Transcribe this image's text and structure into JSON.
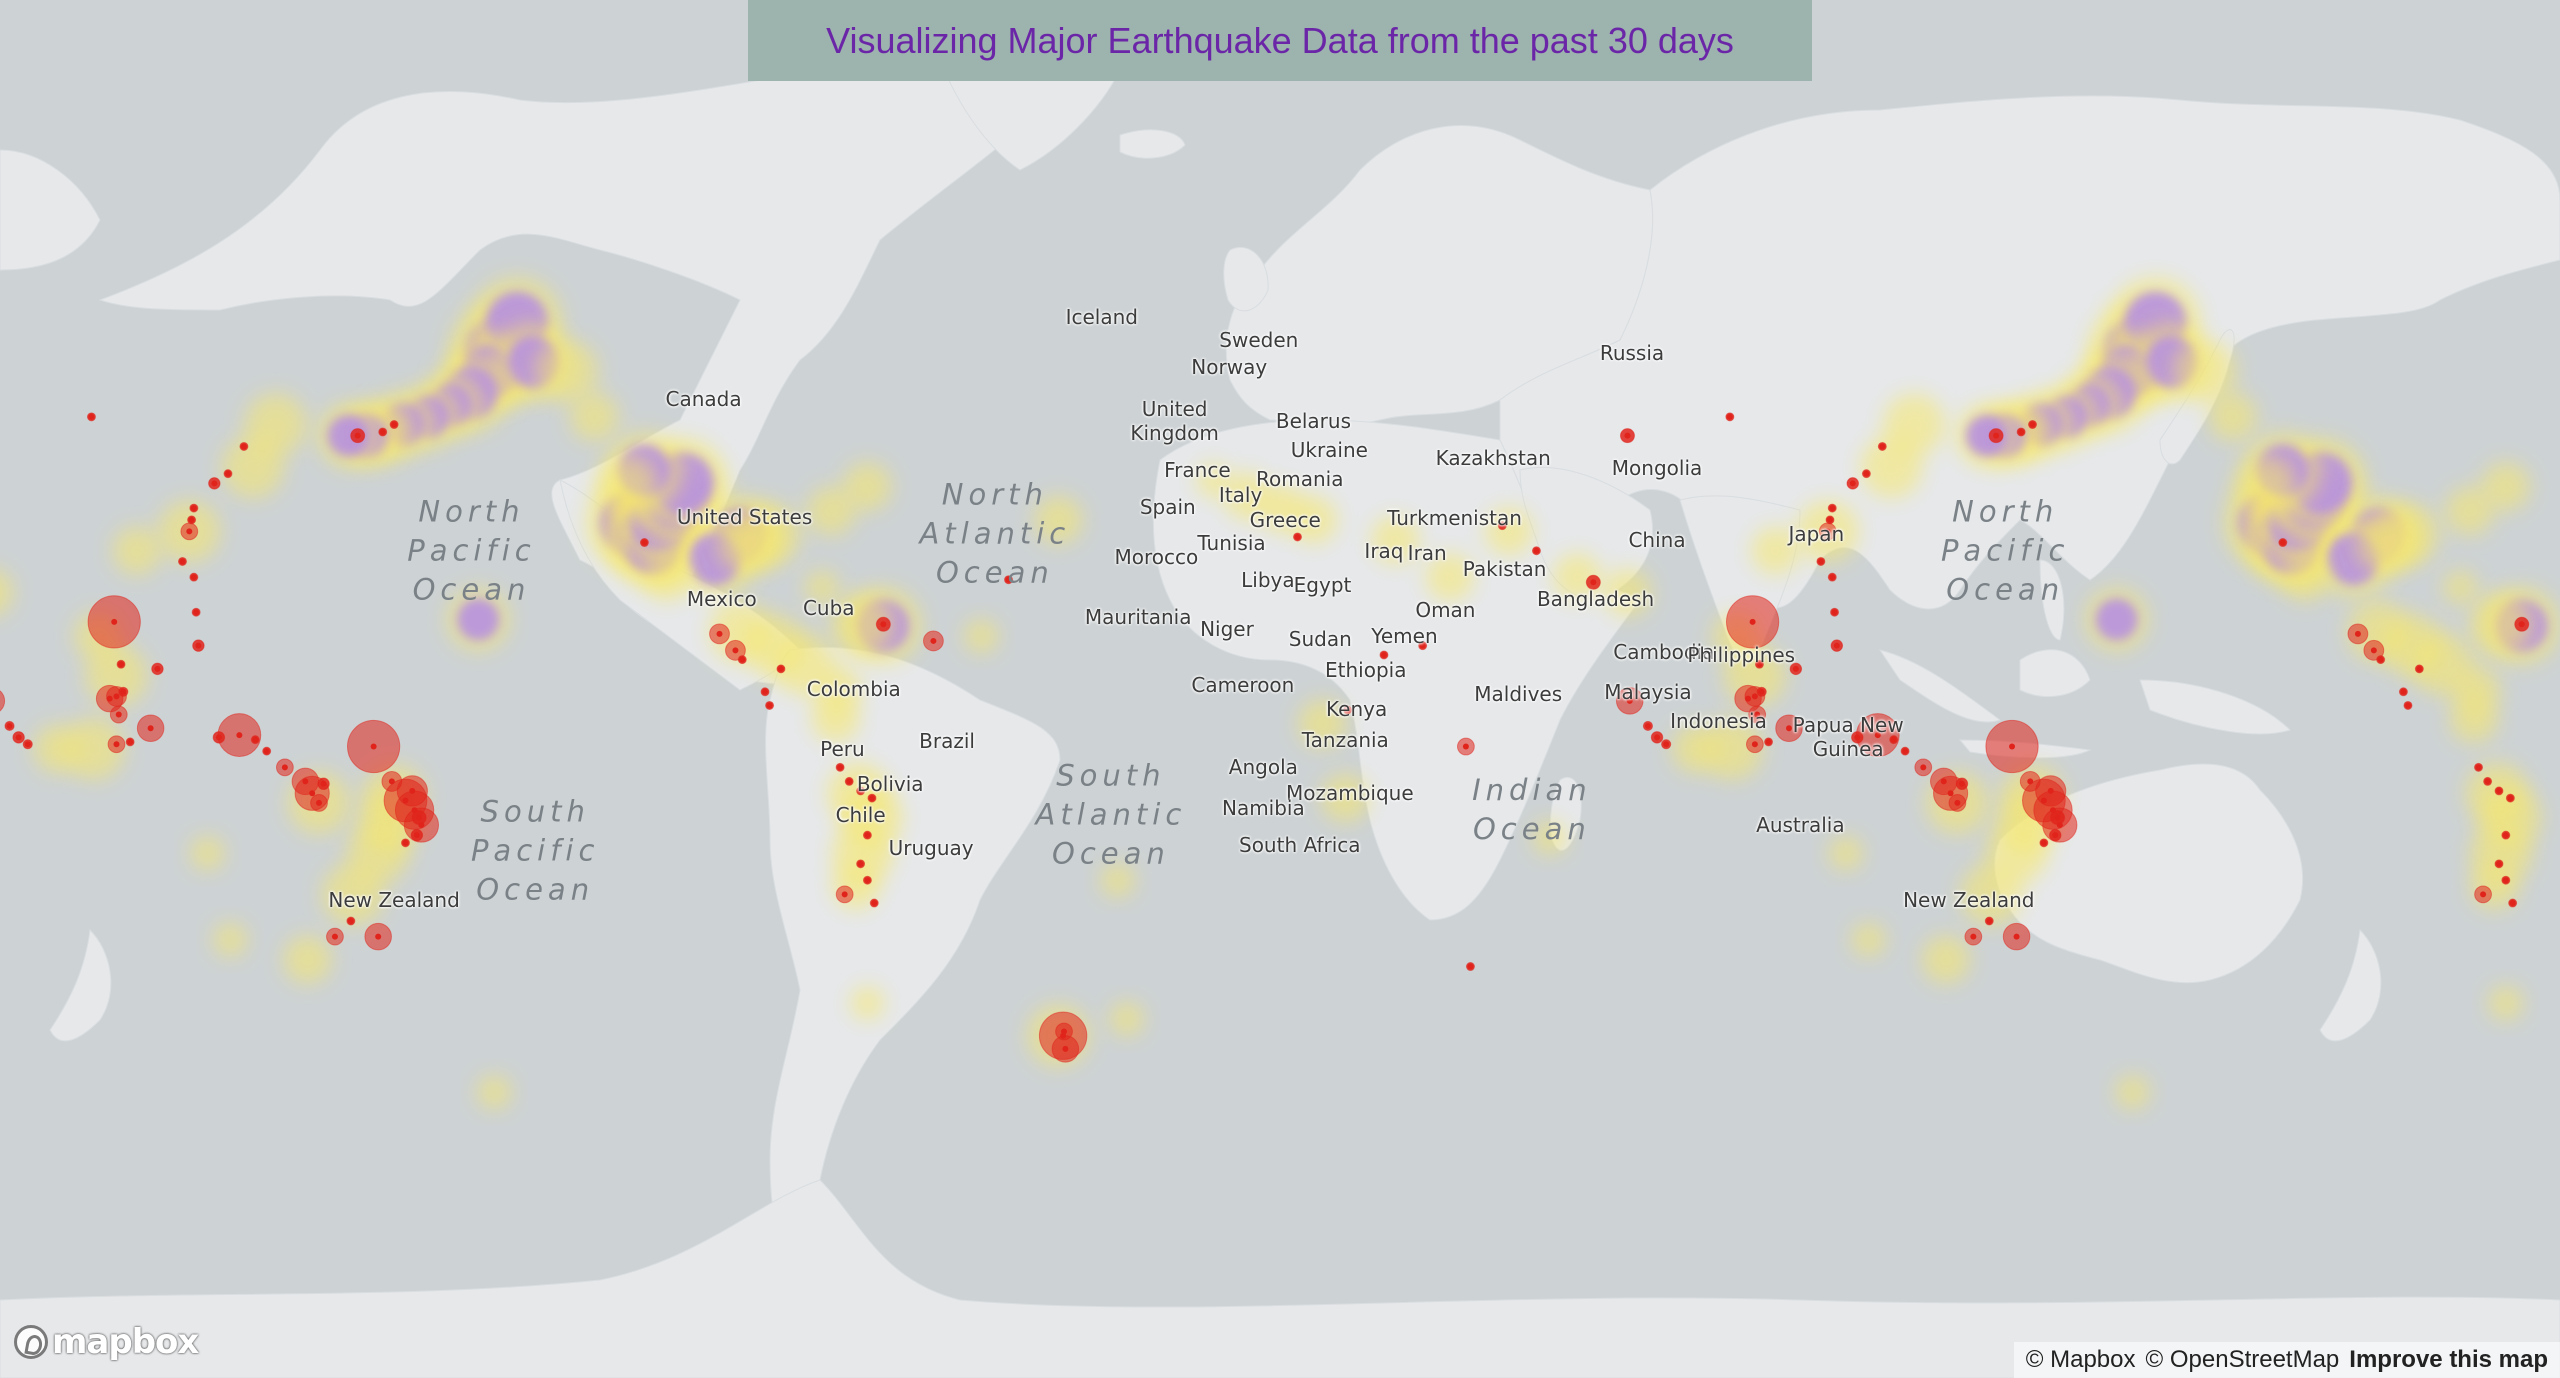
{
  "title": "Visualizing Major Earthquake Data from the past 30 days",
  "colors": {
    "water": "#cdd2d4",
    "land": "#e6e8ea",
    "quake": "#e0241c",
    "heat_low": "#f7e86a",
    "heat_high": "#b892e0",
    "title_bg": "#9db3ae",
    "title_text": "#6b26a8"
  },
  "country_labels": [
    {
      "name": "Iceland",
      "lon": -18.5,
      "lat": 65.0
    },
    {
      "name": "Sweden",
      "lon": 16.0,
      "lat": 62.8
    },
    {
      "name": "Norway",
      "lon": 9.5,
      "lat": 60.0
    },
    {
      "name": "Russia",
      "lon": 98.0,
      "lat": 61.5
    },
    {
      "name": "Canada",
      "lon": -106.0,
      "lat": 56.3
    },
    {
      "name": "United\nKingdom",
      "lon": -2.5,
      "lat": 53.5
    },
    {
      "name": "Belarus",
      "lon": 28.0,
      "lat": 53.4
    },
    {
      "name": "Ukraine",
      "lon": 31.5,
      "lat": 49.5
    },
    {
      "name": "Kazakhstan",
      "lon": 67.5,
      "lat": 48.3
    },
    {
      "name": "Mongolia",
      "lon": 103.5,
      "lat": 46.8
    },
    {
      "name": "France",
      "lon": 2.5,
      "lat": 46.6
    },
    {
      "name": "Romania",
      "lon": 25.0,
      "lat": 45.2
    },
    {
      "name": "Italy",
      "lon": 12.0,
      "lat": 42.7
    },
    {
      "name": "Spain",
      "lon": -4.0,
      "lat": 40.7
    },
    {
      "name": "United States",
      "lon": -97.0,
      "lat": 39.0
    },
    {
      "name": "Turkmenistan",
      "lon": 59.0,
      "lat": 38.8
    },
    {
      "name": "Greece",
      "lon": 21.8,
      "lat": 38.5
    },
    {
      "name": "China",
      "lon": 103.5,
      "lat": 35.0
    },
    {
      "name": "Japan",
      "lon": 138.5,
      "lat": 36.0
    },
    {
      "name": "Iraq",
      "lon": 43.5,
      "lat": 33.0
    },
    {
      "name": "Iran",
      "lon": 53.0,
      "lat": 32.6
    },
    {
      "name": "Tunisia",
      "lon": 10.0,
      "lat": 34.5
    },
    {
      "name": "Morocco",
      "lon": -6.5,
      "lat": 31.8
    },
    {
      "name": "Pakistan",
      "lon": 70.0,
      "lat": 29.5
    },
    {
      "name": "Libya",
      "lon": 18.0,
      "lat": 27.5
    },
    {
      "name": "Egypt",
      "lon": 30.0,
      "lat": 26.5
    },
    {
      "name": "Bangladesh",
      "lon": 90.0,
      "lat": 23.7
    },
    {
      "name": "Mexico",
      "lon": -102.0,
      "lat": 23.6
    },
    {
      "name": "Oman",
      "lon": 57.0,
      "lat": 21.5
    },
    {
      "name": "Cuba",
      "lon": -78.5,
      "lat": 21.8
    },
    {
      "name": "Mauritania",
      "lon": -10.5,
      "lat": 20.0
    },
    {
      "name": "Niger",
      "lon": 9.0,
      "lat": 17.5
    },
    {
      "name": "Sudan",
      "lon": 29.5,
      "lat": 15.5
    },
    {
      "name": "Yemen",
      "lon": 48.0,
      "lat": 16.0
    },
    {
      "name": "Cambodia",
      "lon": 105.0,
      "lat": 12.7
    },
    {
      "name": "Philippines",
      "lon": 122.0,
      "lat": 12.0
    },
    {
      "name": "Ethiopia",
      "lon": 39.5,
      "lat": 8.8
    },
    {
      "name": "Cameroon",
      "lon": 12.5,
      "lat": 5.5
    },
    {
      "name": "Colombia",
      "lon": -73.0,
      "lat": 4.5
    },
    {
      "name": "Malaysia",
      "lon": 101.5,
      "lat": 4.0
    },
    {
      "name": "Maldives",
      "lon": 73.0,
      "lat": 3.5
    },
    {
      "name": "Kenya",
      "lon": 37.5,
      "lat": 0.3
    },
    {
      "name": "Indonesia",
      "lon": 117.0,
      "lat": -2.5
    },
    {
      "name": "Papua New\nGuinea",
      "lon": 145.5,
      "lat": -6.0
    },
    {
      "name": "Brazil",
      "lon": -52.5,
      "lat": -6.8
    },
    {
      "name": "Tanzania",
      "lon": 35.0,
      "lat": -6.5
    },
    {
      "name": "Peru",
      "lon": -75.5,
      "lat": -8.5
    },
    {
      "name": "Angola",
      "lon": 17.0,
      "lat": -12.5
    },
    {
      "name": "Bolivia",
      "lon": -65.0,
      "lat": -16.0
    },
    {
      "name": "Mozambique",
      "lon": 36.0,
      "lat": -18.0
    },
    {
      "name": "Namibia",
      "lon": 17.0,
      "lat": -21.0
    },
    {
      "name": "Chile",
      "lon": -71.5,
      "lat": -22.5
    },
    {
      "name": "Australia",
      "lon": 135.0,
      "lat": -24.5
    },
    {
      "name": "South Africa",
      "lon": 25.0,
      "lat": -28.5
    },
    {
      "name": "Uruguay",
      "lon": -56.0,
      "lat": -29.0
    },
    {
      "name": "New Zealand",
      "lon": 172.0,
      "lat": -38.5
    },
    {
      "name": "New Zealand",
      "lon": -174.0,
      "lat": -38.5
    }
  ],
  "ocean_labels": [
    {
      "name": "North\nPacific\nOcean",
      "lon": -157.0,
      "lat": 33.0
    },
    {
      "name": "North\nPacific\nOcean",
      "lon": 180.0,
      "lat": 33.0
    },
    {
      "name": "North\nAtlantic\nOcean",
      "lon": -42.0,
      "lat": 36.0
    },
    {
      "name": "South\nPacific\nOcean",
      "lon": -143.0,
      "lat": -29.5
    },
    {
      "name": "South\nAtlantic\nOcean",
      "lon": -16.5,
      "lat": -22.5
    },
    {
      "name": "Indian\nOcean",
      "lon": 76.0,
      "lat": -21.5
    }
  ],
  "earthquakes": [
    {
      "lon": -178.5,
      "lat": -8.0,
      "mag": 6.4
    },
    {
      "lon": -174.5,
      "lat": -15.5,
      "mag": 5.6
    },
    {
      "lon": -171.5,
      "lat": -19.5,
      "mag": 6.2
    },
    {
      "lon": -170.0,
      "lat": -17.5,
      "mag": 5.9
    },
    {
      "lon": -169.5,
      "lat": -21.5,
      "mag": 6.1
    },
    {
      "lon": -168.5,
      "lat": -23.0,
      "mag": 5.4
    },
    {
      "lon": -168.0,
      "lat": -24.5,
      "mag": 6.0
    },
    {
      "lon": -169.0,
      "lat": -26.5,
      "mag": 5.3
    },
    {
      "lon": -171.5,
      "lat": -28.0,
      "mag": 5.0
    },
    {
      "lon": -177.5,
      "lat": -44.5,
      "mag": 5.8
    },
    {
      "lon": -182.0,
      "lat": 51.5,
      "mag": 5.4
    },
    {
      "lon": -176.5,
      "lat": 52.0,
      "mag": 5.0
    },
    {
      "lon": -174.0,
      "lat": 53.0,
      "mag": 4.9
    },
    {
      "lon": -119.0,
      "lat": 34.5,
      "mag": 4.8
    },
    {
      "lon": -102.5,
      "lat": 16.5,
      "mag": 5.6
    },
    {
      "lon": -99.0,
      "lat": 13.0,
      "mag": 5.6
    },
    {
      "lon": -97.5,
      "lat": 11.0,
      "mag": 5.0
    },
    {
      "lon": -92.5,
      "lat": 4.0,
      "mag": 4.9
    },
    {
      "lon": -89.0,
      "lat": 9.0,
      "mag": 4.8
    },
    {
      "lon": -91.5,
      "lat": 1.0,
      "mag": 4.9
    },
    {
      "lon": -66.5,
      "lat": 18.5,
      "mag": 5.4
    },
    {
      "lon": -55.5,
      "lat": 15.0,
      "mag": 5.6
    },
    {
      "lon": -39.0,
      "lat": 27.5,
      "mag": 4.9
    },
    {
      "lon": -76.0,
      "lat": -12.5,
      "mag": 4.9
    },
    {
      "lon": -74.0,
      "lat": -15.5,
      "mag": 5.0
    },
    {
      "lon": -71.5,
      "lat": -17.5,
      "mag": 5.0
    },
    {
      "lon": -69.0,
      "lat": -19.0,
      "mag": 5.0
    },
    {
      "lon": -70.0,
      "lat": -26.5,
      "mag": 5.0
    },
    {
      "lon": -71.5,
      "lat": -32.0,
      "mag": 4.8
    },
    {
      "lon": -70.0,
      "lat": -35.0,
      "mag": 4.9
    },
    {
      "lon": -68.5,
      "lat": -39.0,
      "mag": 4.8
    },
    {
      "lon": -75.0,
      "lat": -37.5,
      "mag": 5.5
    },
    {
      "lon": -27.0,
      "lat": -58.0,
      "mag": 6.3
    },
    {
      "lon": -26.5,
      "lat": -59.5,
      "mag": 5.8
    },
    {
      "lon": -26.8,
      "lat": -57.5,
      "mag": 5.5
    },
    {
      "lon": 24.5,
      "lat": 35.5,
      "mag": 4.8
    },
    {
      "lon": 35.5,
      "lat": 0.0,
      "mag": 4.8
    },
    {
      "lon": 43.5,
      "lat": 12.0,
      "mag": 4.8
    },
    {
      "lon": 52.0,
      "lat": 14.0,
      "mag": 4.8
    },
    {
      "lon": 69.5,
      "lat": 37.5,
      "mag": 4.8
    },
    {
      "lon": 77.0,
      "lat": 33.0,
      "mag": 4.8
    },
    {
      "lon": 89.5,
      "lat": 27.0,
      "mag": 5.4
    },
    {
      "lon": 97.0,
      "lat": 51.5,
      "mag": 5.4
    },
    {
      "lon": 119.5,
      "lat": 54.0,
      "mag": 4.8
    },
    {
      "lon": 97.5,
      "lat": 2.0,
      "mag": 5.8
    },
    {
      "lon": 101.5,
      "lat": -3.5,
      "mag": 5.2
    },
    {
      "lon": 103.5,
      "lat": -6.0,
      "mag": 5.3
    },
    {
      "lon": 105.5,
      "lat": -7.5,
      "mag": 5.2
    },
    {
      "lon": 61.5,
      "lat": -8.0,
      "mag": 5.5
    },
    {
      "lon": 62.5,
      "lat": -49.0,
      "mag": 4.8
    },
    {
      "lon": 124.5,
      "lat": 19.0,
      "mag": 6.4
    },
    {
      "lon": 126.0,
      "lat": 10.0,
      "mag": 4.8
    },
    {
      "lon": 123.5,
      "lat": 2.5,
      "mag": 5.8
    },
    {
      "lon": 125.0,
      "lat": 3.0,
      "mag": 5.6
    },
    {
      "lon": 126.5,
      "lat": 4.0,
      "mag": 5.2
    },
    {
      "lon": 125.5,
      "lat": -1.0,
      "mag": 5.5
    },
    {
      "lon": 125.0,
      "lat": -7.5,
      "mag": 5.5
    },
    {
      "lon": 128.0,
      "lat": -7.0,
      "mag": 5.0
    },
    {
      "lon": 132.5,
      "lat": -4.0,
      "mag": 5.8
    },
    {
      "lon": 134.0,
      "lat": 9.0,
      "mag": 5.3
    },
    {
      "lon": 143.0,
      "lat": 14.0,
      "mag": 5.3
    },
    {
      "lon": 142.0,
      "lat": 28.0,
      "mag": 5.0
    },
    {
      "lon": 139.5,
      "lat": 31.0,
      "mag": 5.0
    },
    {
      "lon": 141.5,
      "lat": 38.5,
      "mag": 4.9
    },
    {
      "lon": 142.0,
      "lat": 40.5,
      "mag": 4.9
    },
    {
      "lon": 141.0,
      "lat": 36.5,
      "mag": 5.5
    },
    {
      "lon": 142.5,
      "lat": 21.0,
      "mag": 4.8
    },
    {
      "lon": 146.5,
      "lat": 44.5,
      "mag": 5.3
    },
    {
      "lon": 149.5,
      "lat": 46.0,
      "mag": 4.8
    },
    {
      "lon": 153.0,
      "lat": 50.0,
      "mag": 4.8
    },
    {
      "lon": 147.5,
      "lat": -6.0,
      "mag": 5.3
    },
    {
      "lon": 152.0,
      "lat": -5.5,
      "mag": 6.2
    },
    {
      "lon": 155.5,
      "lat": -6.5,
      "mag": 5.0
    },
    {
      "lon": 158.0,
      "lat": -9.0,
      "mag": 4.9
    },
    {
      "lon": 162.0,
      "lat": -12.5,
      "mag": 5.5
    },
    {
      "lon": 166.5,
      "lat": -15.5,
      "mag": 5.8
    },
    {
      "lon": 168.0,
      "lat": -18.0,
      "mag": 6.0
    },
    {
      "lon": 169.5,
      "lat": -20.0,
      "mag": 5.5
    },
    {
      "lon": 170.5,
      "lat": -16.0,
      "mag": 5.3
    },
    {
      "lon": 173.0,
      "lat": -44.5,
      "mag": 5.5
    },
    {
      "lon": 176.5,
      "lat": -42.0,
      "mag": 4.8
    }
  ],
  "heat_clusters": [
    {
      "lon": -150.5,
      "lat": 61.5,
      "w": 6,
      "dense": true
    },
    {
      "lon": -147.0,
      "lat": 64.5,
      "w": 5,
      "dense": true
    },
    {
      "lon": -153.0,
      "lat": 59.5,
      "w": 4,
      "dense": true
    },
    {
      "lon": -143.5,
      "lat": 60.5,
      "w": 4,
      "dense": true
    },
    {
      "lon": -157.0,
      "lat": 57.0,
      "w": 4,
      "dense": true
    },
    {
      "lon": -161.5,
      "lat": 55.5,
      "w": 3,
      "dense": true
    },
    {
      "lon": -166.5,
      "lat": 54.0,
      "w": 3,
      "dense": true
    },
    {
      "lon": -172.0,
      "lat": 53.0,
      "w": 3,
      "dense": true
    },
    {
      "lon": -176.5,
      "lat": 52.0,
      "w": 3,
      "dense": false
    },
    {
      "lon": 180.0,
      "lat": 51.5,
      "w": 3,
      "dense": true
    },
    {
      "lon": 176.0,
      "lat": 51.5,
      "w": 3,
      "dense": true
    },
    {
      "lon": -122.0,
      "lat": 38.0,
      "w": 5,
      "dense": true
    },
    {
      "lon": -118.0,
      "lat": 35.5,
      "w": 5,
      "dense": true
    },
    {
      "lon": -117.0,
      "lat": 33.5,
      "w": 4,
      "dense": true
    },
    {
      "lon": -115.5,
      "lat": 38.5,
      "w": 5,
      "dense": true
    },
    {
      "lon": -112.0,
      "lat": 42.0,
      "w": 5,
      "dense": true
    },
    {
      "lon": -110.5,
      "lat": 44.5,
      "w": 5,
      "dense": true
    },
    {
      "lon": -119.0,
      "lat": 46.5,
      "w": 4,
      "dense": true
    },
    {
      "lon": -123.0,
      "lat": 44.0,
      "w": 3,
      "dense": false
    },
    {
      "lon": -98.0,
      "lat": 36.0,
      "w": 4,
      "dense": true
    },
    {
      "lon": -103.5,
      "lat": 31.5,
      "w": 4,
      "dense": true
    },
    {
      "lon": -96.0,
      "lat": 34.5,
      "w": 3,
      "dense": false
    },
    {
      "lon": -91.5,
      "lat": 36.0,
      "w": 3,
      "dense": false
    },
    {
      "lon": -155.5,
      "lat": 19.5,
      "w": 3,
      "dense": true
    },
    {
      "lon": -66.5,
      "lat": 18.2,
      "w": 4,
      "dense": true
    },
    {
      "lon": -71.0,
      "lat": 18.5,
      "w": 3,
      "dense": false
    },
    {
      "lon": -136.0,
      "lat": 59.5,
      "w": 3,
      "dense": false
    },
    {
      "lon": -130.0,
      "lat": 54.0,
      "w": 2,
      "dense": false
    },
    {
      "lon": -98.0,
      "lat": 17.0,
      "w": 3,
      "dense": false
    },
    {
      "lon": -90.5,
      "lat": 14.0,
      "w": 3,
      "dense": false
    },
    {
      "lon": -84.0,
      "lat": 10.0,
      "w": 3,
      "dense": false
    },
    {
      "lon": -76.5,
      "lat": 4.5,
      "w": 2,
      "dense": false
    },
    {
      "lon": -77.0,
      "lat": -2.0,
      "w": 2,
      "dense": false
    },
    {
      "lon": -72.0,
      "lat": -18.0,
      "w": 3,
      "dense": false
    },
    {
      "lon": -69.0,
      "lat": -23.0,
      "w": 3,
      "dense": false
    },
    {
      "lon": -71.0,
      "lat": -30.0,
      "w": 3,
      "dense": false
    },
    {
      "lon": -72.5,
      "lat": -36.0,
      "w": 2,
      "dense": false
    },
    {
      "lon": -174.0,
      "lat": -18.5,
      "w": 3,
      "dense": false
    },
    {
      "lon": -175.0,
      "lat": -24.0,
      "w": 3,
      "dense": false
    },
    {
      "lon": -177.5,
      "lat": -30.0,
      "w": 3,
      "dense": false
    },
    {
      "lon": 177.0,
      "lat": -37.5,
      "w": 3,
      "dense": false
    },
    {
      "lon": 169.5,
      "lat": -20.0,
      "w": 3,
      "dense": false
    },
    {
      "lon": 125.0,
      "lat": 7.5,
      "w": 3,
      "dense": false
    },
    {
      "lon": 121.0,
      "lat": 16.0,
      "w": 2,
      "dense": false
    },
    {
      "lon": 141.0,
      "lat": 36.5,
      "w": 3,
      "dense": false
    },
    {
      "lon": 129.5,
      "lat": 33.0,
      "w": 2,
      "dense": false
    },
    {
      "lon": 155.0,
      "lat": 47.0,
      "w": 3,
      "dense": false
    },
    {
      "lon": 160.0,
      "lat": 53.0,
      "w": 3,
      "dense": false
    },
    {
      "lon": 120.0,
      "lat": -8.5,
      "w": 3,
      "dense": false
    },
    {
      "lon": 112.0,
      "lat": -8.5,
      "w": 2,
      "dense": false
    },
    {
      "lon": 97.0,
      "lat": 25.0,
      "w": 2,
      "dense": false
    },
    {
      "lon": 86.0,
      "lat": 28.0,
      "w": 2,
      "dense": false
    },
    {
      "lon": 71.0,
      "lat": 36.5,
      "w": 2,
      "dense": false
    },
    {
      "lon": 58.0,
      "lat": 28.0,
      "w": 2,
      "dense": false
    },
    {
      "lon": 46.0,
      "lat": 35.0,
      "w": 2,
      "dense": false
    },
    {
      "lon": 28.0,
      "lat": 38.5,
      "w": 2,
      "dense": false
    },
    {
      "lon": 21.0,
      "lat": 40.5,
      "w": 2,
      "dense": false
    },
    {
      "lon": 13.5,
      "lat": 42.5,
      "w": 2,
      "dense": false
    },
    {
      "lon": -28.0,
      "lat": 38.5,
      "w": 2,
      "dense": false
    },
    {
      "lon": -45.0,
      "lat": 16.0,
      "w": 1,
      "dense": false
    },
    {
      "lon": 30.0,
      "lat": -3.0,
      "w": 2,
      "dense": false
    },
    {
      "lon": 35.0,
      "lat": -19.0,
      "w": 2,
      "dense": false
    },
    {
      "lon": 80.0,
      "lat": -27.0,
      "w": 1,
      "dense": false
    },
    {
      "lon": -15.0,
      "lat": -35.0,
      "w": 1,
      "dense": false
    },
    {
      "lon": -13.0,
      "lat": -56.0,
      "w": 1,
      "dense": false
    },
    {
      "lon": -28.0,
      "lat": -58.0,
      "w": 3,
      "dense": false
    },
    {
      "lon": -152.0,
      "lat": -64.0,
      "w": 1,
      "dense": false
    },
    {
      "lon": 145.0,
      "lat": -30.0,
      "w": 1,
      "dense": false
    },
    {
      "lon": 150.0,
      "lat": -45.0,
      "w": 1,
      "dense": false
    },
    {
      "lon": 167.0,
      "lat": -48.0,
      "w": 2,
      "dense": false
    },
    {
      "lon": -70.0,
      "lat": -54.0,
      "w": 1,
      "dense": false
    },
    {
      "lon": -114.0,
      "lat": 28.0,
      "w": 2,
      "dense": false
    },
    {
      "lon": -80.0,
      "lat": 26.0,
      "w": 1,
      "dense": false
    },
    {
      "lon": -70.0,
      "lat": 44.0,
      "w": 2,
      "dense": false
    },
    {
      "lon": -78.0,
      "lat": 40.0,
      "w": 2,
      "dense": false
    },
    {
      "lon": 6.0,
      "lat": 45.0,
      "w": 1,
      "dense": false
    }
  ],
  "logo": {
    "wordmark": "mapbox"
  },
  "attribution": {
    "mapbox": "© Mapbox",
    "osm": "© OpenStreetMap",
    "improve": "Improve this map"
  }
}
